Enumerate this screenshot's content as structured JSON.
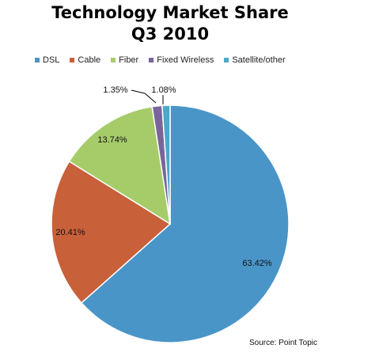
{
  "chart_data": {
    "type": "pie",
    "title_lines": [
      "Technology Market Share",
      "Q3 2010"
    ],
    "source": "Source: Point Topic",
    "legend_position": "top",
    "series": [
      {
        "name": "DSL",
        "value": 63.42,
        "label": "63.42%",
        "color": "#4A95C8"
      },
      {
        "name": "Cable",
        "value": 20.41,
        "label": "20.41%",
        "color": "#C8603A"
      },
      {
        "name": "Fiber",
        "value": 13.74,
        "label": "13.74%",
        "color": "#A6CC6A"
      },
      {
        "name": "Fixed Wireless",
        "value": 1.35,
        "label": "1.35%",
        "color": "#7A659A"
      },
      {
        "name": "Satellite/other",
        "value": 1.08,
        "label": "1.08%",
        "color": "#4BA9C9"
      }
    ]
  }
}
